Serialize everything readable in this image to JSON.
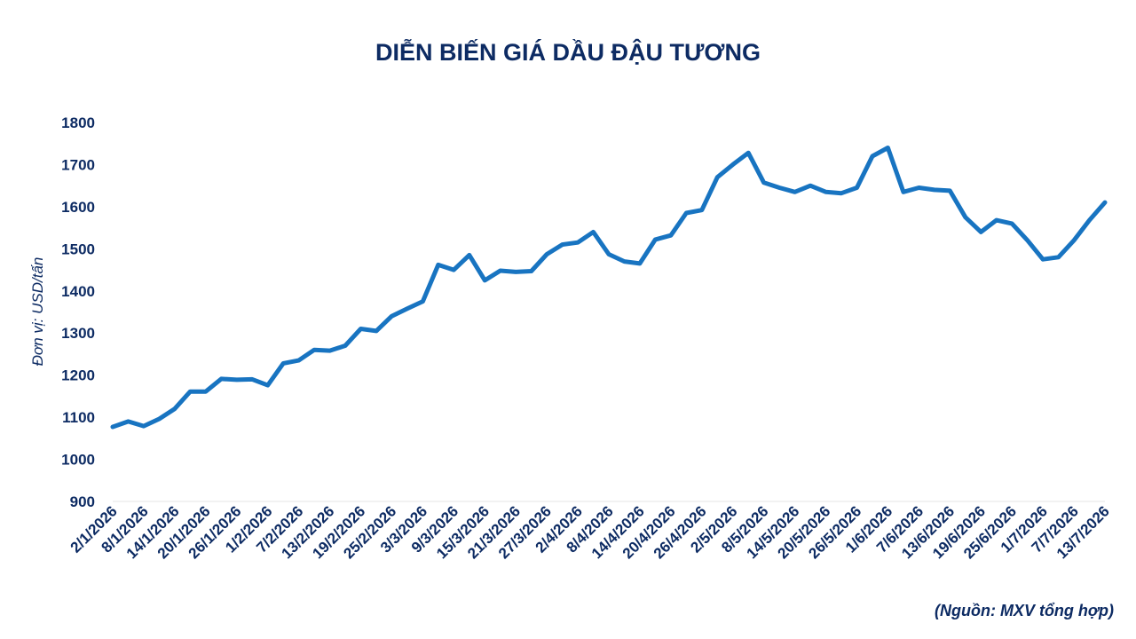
{
  "chart_data": {
    "type": "line",
    "title": "DIỄN BIẾN GIÁ DẦU ĐẬU TƯƠNG",
    "y_label": "Đơn vị: USD/tấn",
    "source": "(Nguồn: MXV tổng hợp)",
    "categories": [
      "2/1/2026",
      null,
      "8/1/2026",
      null,
      "14/1/2026",
      null,
      "20/1/2026",
      null,
      "26/1/2026",
      null,
      "1/2/2026",
      null,
      "7/2/2026",
      null,
      "13/2/2026",
      null,
      "19/2/2026",
      null,
      "25/2/2026",
      null,
      "3/3/2026",
      null,
      "9/3/2026",
      null,
      "15/3/2026",
      null,
      "21/3/2026",
      null,
      "27/3/2026",
      null,
      "2/4/2026",
      null,
      "8/4/2026",
      null,
      "14/4/2026",
      null,
      "20/4/2026",
      null,
      "26/4/2026",
      null,
      "2/5/2026",
      null,
      "8/5/2026",
      null,
      "14/5/2026",
      null,
      "20/5/2026",
      null,
      "26/5/2026",
      null,
      "1/6/2026",
      null,
      "7/6/2026",
      null,
      "13/6/2026",
      null,
      "19/6/2026",
      null,
      "25/6/2026",
      null,
      "1/7/2026",
      null,
      "7/7/2026",
      null,
      "13/7/2026"
    ],
    "series": [
      {
        "name": "Dầu đậu tương",
        "color": "#1874c1",
        "values": [
          1077,
          1090,
          1079,
          1096,
          1120,
          1161,
          1161,
          1191,
          1189,
          1190,
          1176,
          1228,
          1235,
          1260,
          1258,
          1270,
          1310,
          1305,
          1340,
          1358,
          1375,
          1462,
          1450,
          1485,
          1425,
          1448,
          1445,
          1447,
          1487,
          1510,
          1515,
          1540,
          1487,
          1470,
          1465,
          1522,
          1532,
          1585,
          1592,
          1670,
          1700,
          1728,
          1657,
          1645,
          1635,
          1650,
          1635,
          1632,
          1645,
          1720,
          1740,
          1635,
          1645,
          1640,
          1638,
          1575,
          1540,
          1568,
          1560,
          1520,
          1475,
          1480,
          1520,
          1568,
          1610
        ]
      }
    ],
    "ylim": [
      900,
      1800
    ],
    "yticks": [
      900,
      1000,
      1100,
      1200,
      1300,
      1400,
      1500,
      1600,
      1700,
      1800
    ],
    "grid": false
  }
}
